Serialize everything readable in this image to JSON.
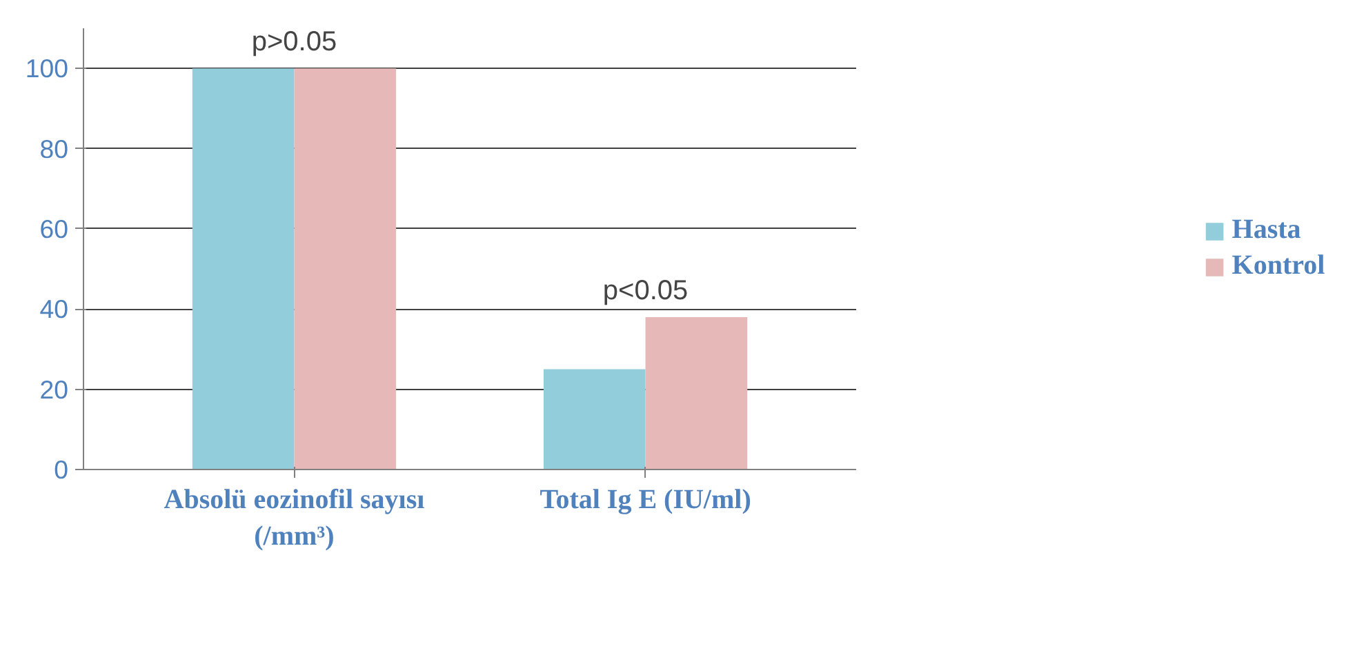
{
  "chart_data": {
    "type": "bar",
    "categories": [
      "Absolü eozinofil sayısı\n(/mm³)",
      "Total Ig E (IU/ml)"
    ],
    "series": [
      {
        "name": "Hasta",
        "color": "#92cddc",
        "values": [
          100,
          25
        ]
      },
      {
        "name": "Kontrol",
        "color": "#e6b9b8",
        "values": [
          100,
          38
        ]
      }
    ],
    "ylim": [
      0,
      110
    ],
    "yticks": [
      0,
      20,
      40,
      60,
      80,
      100
    ],
    "grid": "y",
    "legend": "right",
    "annotations": [
      "p>0.05",
      "p<0.05"
    ]
  }
}
